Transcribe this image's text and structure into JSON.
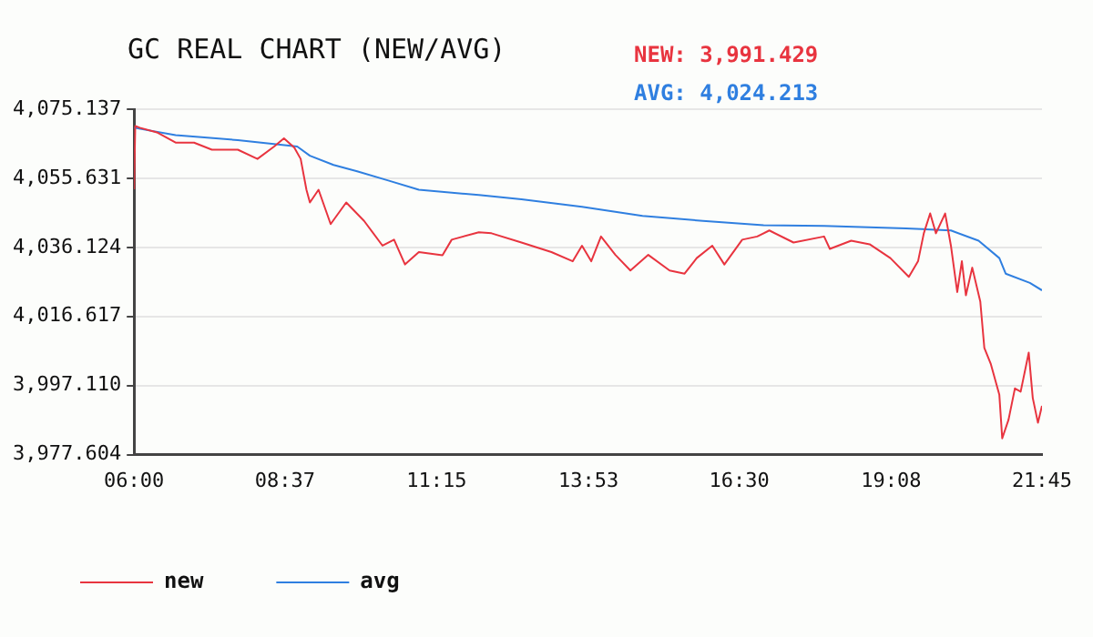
{
  "chart_data": {
    "type": "line",
    "title": "GC REAL CHART (NEW/AVG)",
    "annotations": [
      "NEW: 3,991.429",
      "AVG: 4,024.213"
    ],
    "xlim": [
      6,
      21.75
    ],
    "xticks": [
      {
        "value": 6,
        "label": "06:00"
      },
      {
        "value": 8.617,
        "label": "08:37"
      },
      {
        "value": 11.25,
        "label": "11:15"
      },
      {
        "value": 13.883,
        "label": "13:53"
      },
      {
        "value": 16.5,
        "label": "16:30"
      },
      {
        "value": 19.133,
        "label": "19:08"
      },
      {
        "value": 21.75,
        "label": "21:45"
      }
    ],
    "ylim": [
      3977.604,
      4075.137
    ],
    "yticks": [
      {
        "value": 3977.604,
        "label": "3,977.604"
      },
      {
        "value": 3997.11,
        "label": "3,997.110"
      },
      {
        "value": 4016.617,
        "label": "4,016.617"
      },
      {
        "value": 4036.124,
        "label": "4,036.124"
      },
      {
        "value": 4055.631,
        "label": "4,055.631"
      },
      {
        "value": 4075.137,
        "label": "4,075.137"
      }
    ],
    "grid": "y",
    "legend": "bottom",
    "marker": "none",
    "line_style": "solid",
    "series": [
      {
        "name": "new",
        "color": "#e8343f",
        "x": [
          6.0,
          6.02,
          6.1,
          6.41,
          6.72,
          7.04,
          7.35,
          7.8,
          8.14,
          8.43,
          8.6,
          8.78,
          8.89,
          8.99,
          9.05,
          9.2,
          9.41,
          9.68,
          9.99,
          10.31,
          10.51,
          10.7,
          10.94,
          11.35,
          11.51,
          11.98,
          12.2,
          12.72,
          13.24,
          13.61,
          13.77,
          13.93,
          14.1,
          14.35,
          14.61,
          14.92,
          15.29,
          15.55,
          15.76,
          16.03,
          16.24,
          16.55,
          16.81,
          17.02,
          17.44,
          17.97,
          18.07,
          18.44,
          18.76,
          19.12,
          19.44,
          19.6,
          19.7,
          19.81,
          19.91,
          20.07,
          20.17,
          20.28,
          20.36,
          20.43,
          20.54,
          20.68,
          20.75,
          20.86,
          21.01,
          21.06,
          21.17,
          21.28,
          21.38,
          21.52,
          21.59,
          21.68,
          21.75
        ],
        "values": [
          4052.5,
          4070.4,
          4069.9,
          4068.5,
          4065.7,
          4065.7,
          4063.7,
          4063.7,
          4061.1,
          4064.6,
          4066.9,
          4064.3,
          4061.1,
          4052.4,
          4048.8,
          4052.4,
          4042.7,
          4048.8,
          4043.6,
          4036.6,
          4038.3,
          4031.3,
          4034.8,
          4033.9,
          4038.3,
          4040.4,
          4040.1,
          4037.5,
          4034.8,
          4032.2,
          4036.6,
          4032.2,
          4039.2,
          4034.0,
          4029.6,
          4034.0,
          4029.6,
          4028.7,
          4033.1,
          4036.6,
          4031.3,
          4038.3,
          4039.2,
          4040.9,
          4037.5,
          4039.2,
          4035.7,
          4038.0,
          4037.0,
          4033.1,
          4027.8,
          4032.2,
          4040.1,
          4045.7,
          4040.1,
          4045.7,
          4036.6,
          4023.5,
          4032.2,
          4022.6,
          4030.4,
          4020.8,
          4007.7,
          4003.3,
          3994.5,
          3982.2,
          3987.5,
          3996.3,
          3995.4,
          4006.4,
          3993.6,
          3986.6,
          3991.4
        ]
      },
      {
        "name": "avg",
        "color": "#2f7fe0",
        "x": [
          6.0,
          6.72,
          7.8,
          8.83,
          9.05,
          9.46,
          9.87,
          10.41,
          10.94,
          11.98,
          12.72,
          13.77,
          14.82,
          15.87,
          16.92,
          17.97,
          19.39,
          20.17,
          20.65,
          21.01,
          21.12,
          21.54,
          21.75
        ],
        "values": [
          4069.9,
          4067.8,
          4066.4,
          4064.6,
          4062.0,
          4059.4,
          4057.6,
          4055.0,
          4052.4,
          4050.9,
          4049.7,
          4047.6,
          4045.0,
          4043.6,
          4042.4,
          4042.2,
          4041.5,
          4040.9,
          4038.0,
          4033.1,
          4028.7,
          4026.1,
          4024.0
        ]
      }
    ]
  }
}
